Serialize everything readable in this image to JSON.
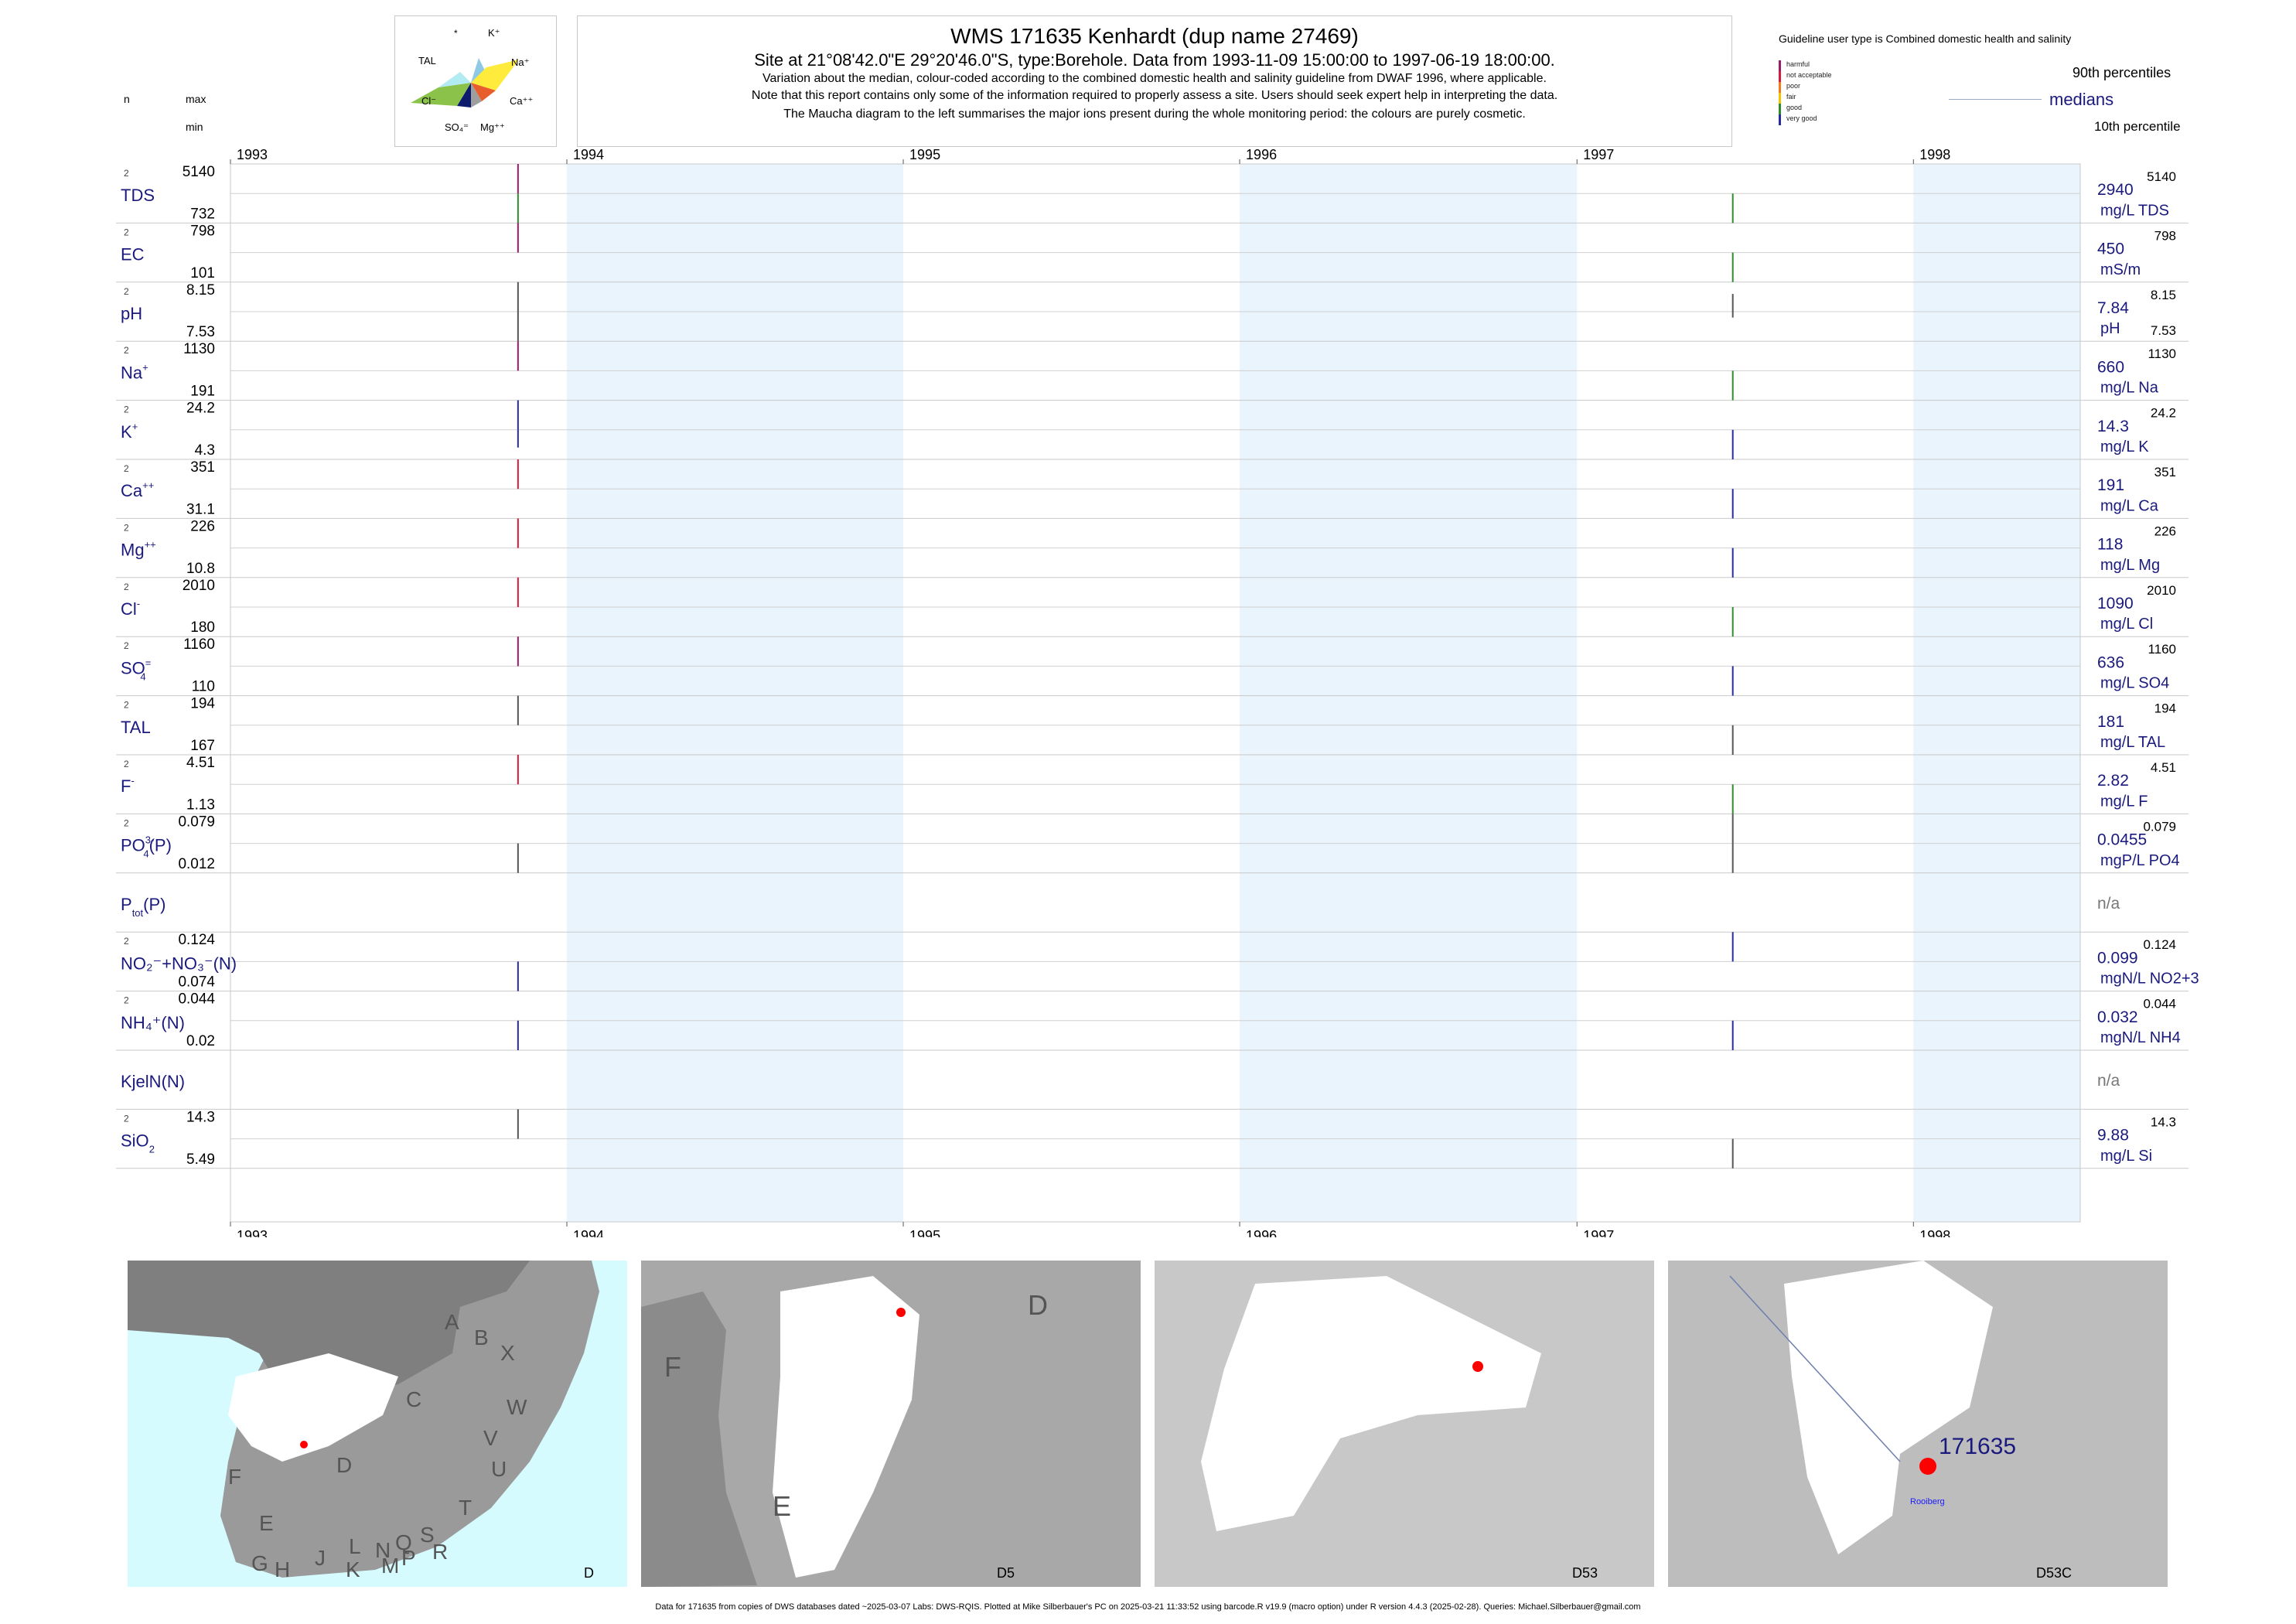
{
  "header": {
    "title": "WMS 171635  Kenhardt (dup name 27469)",
    "subtitle": "Site at 21°08'42.0\"E 29°20'46.0\"S, type:Borehole.  Data from 1993-11-09 15:00:00 to 1997-06-19 18:00:00.",
    "note1": "Variation about the median,  colour-coded according to the combined domestic health and salinity guideline from DWAF 1996, where applicable.",
    "note2": "Note that this report contains only some of the information required to properly assess a site. Users should seek expert help in interpreting the data.",
    "note3": "The Maucha diagram to the left summarises the major ions present during the whole monitoring period: the colours are purely cosmetic."
  },
  "maucha": {
    "labels": [
      "*",
      "K⁺",
      "TAL",
      "Na⁺",
      "Cl⁻",
      "Ca⁺⁺",
      "SO₄⁼",
      "Mg⁺⁺"
    ]
  },
  "left_header": {
    "n": "n",
    "max": "max",
    "min": "min"
  },
  "legend": {
    "guideline": "Guideline user type is Combined domestic health and salinity",
    "p90": "90th percentiles",
    "medians": "medians",
    "p10": "10th percentile",
    "classes": [
      {
        "label": "harmful",
        "color": "#9b1b6b"
      },
      {
        "label": "not acceptable",
        "color": "#d81b3c"
      },
      {
        "label": "poor",
        "color": "#f27c1a"
      },
      {
        "label": "fair",
        "color": "#f5c400"
      },
      {
        "label": "good",
        "color": "#2e8b2e"
      },
      {
        "label": "very good",
        "color": "#2a2aa0"
      }
    ]
  },
  "colors": {
    "shade": "#e9f4fc",
    "grid": "#c9c9c9",
    "navy": "#1a1a7e"
  },
  "chart_data": {
    "type": "line",
    "x_range": [
      "1993-01-01",
      "1998-07-01"
    ],
    "years": [
      "1993",
      "1994",
      "1995",
      "1996",
      "1997",
      "1998"
    ],
    "sample_dates": [
      "1993-11-09",
      "1997-06-19"
    ],
    "series": [
      {
        "name": "TDS",
        "sup": "",
        "sub": "",
        "n": "2",
        "max": "5140",
        "min": "732",
        "median": "2940",
        "unit": "mg/L TDS",
        "rmax": "5140",
        "rmin": "",
        "seg1": [
          "#9b1b6b",
          "#2e8b2e"
        ],
        "seg2": [
          "#2e8b2e",
          "#2e8b2e"
        ],
        "pos1": [
          0,
          1
        ],
        "pos2": [
          0.5,
          1
        ]
      },
      {
        "name": "EC",
        "sup": "",
        "sub": "",
        "n": "2",
        "max": "798",
        "min": "101",
        "median": "450",
        "unit": "mS/m",
        "rmax": "798",
        "rmin": "",
        "seg1": [
          "#9b1b6b",
          "#2e8b2e"
        ],
        "seg2": [
          "#2e8b2e",
          "#2e8b2e"
        ],
        "pos1": [
          0,
          0.5
        ],
        "pos2": [
          0.5,
          1
        ]
      },
      {
        "name": "pH",
        "sup": "",
        "sub": "",
        "n": "2",
        "max": "8.15",
        "min": "7.53",
        "median": "7.84",
        "unit": "pH",
        "rmax": "8.15",
        "rmin": "7.53",
        "seg1": [
          "#555555",
          "#555555"
        ],
        "seg2": [
          "#555555",
          "#555555"
        ],
        "pos1": [
          0,
          1
        ],
        "pos2": [
          0.2,
          0.6
        ]
      },
      {
        "name": "Na",
        "sup": "+",
        "sub": "",
        "n": "2",
        "max": "1130",
        "min": "191",
        "median": "660",
        "unit": "mg/L Na",
        "rmax": "1130",
        "rmin": "",
        "seg1": [
          "#9b1b6b",
          "#2e8b2e"
        ],
        "seg2": [
          "#2e8b2e",
          "#2e8b2e"
        ],
        "pos1": [
          0,
          0.5
        ],
        "pos2": [
          0.5,
          1
        ]
      },
      {
        "name": "K",
        "sup": "+",
        "sub": "",
        "n": "2",
        "max": "24.2",
        "min": "4.3",
        "median": "14.3",
        "unit": "mg/L K",
        "rmax": "24.2",
        "rmin": "",
        "seg1": [
          "#2a2aa0",
          "#2a2aa0"
        ],
        "seg2": [
          "#2a2aa0",
          "#2a2aa0"
        ],
        "pos1": [
          0,
          0.8
        ],
        "pos2": [
          0.5,
          1
        ]
      },
      {
        "name": "Ca",
        "sup": "++",
        "sub": "",
        "n": "2",
        "max": "351",
        "min": "31.1",
        "median": "191",
        "unit": "mg/L Ca",
        "rmax": "351",
        "rmin": "",
        "seg1": [
          "#d81b3c",
          "#2a2aa0"
        ],
        "seg2": [
          "#2a2aa0",
          "#2a2aa0"
        ],
        "pos1": [
          0,
          0.5
        ],
        "pos2": [
          0.5,
          1
        ]
      },
      {
        "name": "Mg",
        "sup": "++",
        "sub": "",
        "n": "2",
        "max": "226",
        "min": "10.8",
        "median": "118",
        "unit": "mg/L Mg",
        "rmax": "226",
        "rmin": "",
        "seg1": [
          "#d81b3c",
          "#2a2aa0"
        ],
        "seg2": [
          "#2a2aa0",
          "#2a2aa0"
        ],
        "pos1": [
          0,
          0.5
        ],
        "pos2": [
          0.5,
          1
        ]
      },
      {
        "name": "Cl",
        "sup": "-",
        "sub": "",
        "n": "2",
        "max": "2010",
        "min": "180",
        "median": "1090",
        "unit": "mg/L Cl",
        "rmax": "2010",
        "rmin": "",
        "seg1": [
          "#d81b3c",
          "#2e8b2e"
        ],
        "seg2": [
          "#2e8b2e",
          "#2e8b2e"
        ],
        "pos1": [
          0,
          0.5
        ],
        "pos2": [
          0.5,
          1
        ]
      },
      {
        "name": "SO",
        "sup": "=",
        "sub": "4",
        "n": "2",
        "max": "1160",
        "min": "110",
        "median": "636",
        "unit": "mg/L SO4",
        "rmax": "1160",
        "rmin": "",
        "seg1": [
          "#9b1b6b",
          "#2a2aa0"
        ],
        "seg2": [
          "#2a2aa0",
          "#2a2aa0"
        ],
        "pos1": [
          0,
          0.5
        ],
        "pos2": [
          0.5,
          1
        ]
      },
      {
        "name": "TAL",
        "sup": "",
        "sub": "",
        "n": "2",
        "max": "194",
        "min": "167",
        "median": "181",
        "unit": "mg/L TAL",
        "rmax": "194",
        "rmin": "",
        "seg1": [
          "#555555",
          "#555555"
        ],
        "seg2": [
          "#555555",
          "#555555"
        ],
        "pos1": [
          0,
          0.5
        ],
        "pos2": [
          0.5,
          1
        ]
      },
      {
        "name": "F",
        "sup": "-",
        "sub": "",
        "n": "2",
        "max": "4.51",
        "min": "1.13",
        "median": "2.82",
        "unit": "mg/L F",
        "rmax": "4.51",
        "rmin": "",
        "seg1": [
          "#d81b3c",
          "#2e8b2e"
        ],
        "seg2": [
          "#2e8b2e",
          "#2e8b2e"
        ],
        "pos1": [
          0,
          0.5
        ],
        "pos2": [
          0.5,
          1
        ]
      },
      {
        "name": "PO",
        "sup": "3-",
        "sub": "4",
        "tail": "(P)",
        "n": "2",
        "max": "0.079",
        "min": "0.012",
        "median": "0.0455",
        "unit": "mgP/L PO4",
        "rmax": "0.079",
        "rmin": "",
        "seg1": [
          "#555555",
          "#555555"
        ],
        "seg2": [
          "#555555",
          "#555555"
        ],
        "pos1": [
          0.5,
          1
        ],
        "pos2": [
          0,
          1
        ]
      },
      {
        "name": "P",
        "sup": "",
        "sub": "tot",
        "tail": "(P)",
        "n": "",
        "max": "",
        "min": "",
        "median": "n/a",
        "unit": "",
        "rmax": "",
        "rmin": "",
        "empty": true
      },
      {
        "name": "NO₂⁻+NO₃⁻(N)",
        "sup": "",
        "sub": "",
        "n": "2",
        "max": "0.124",
        "min": "0.074",
        "median": "0.099",
        "unit": "mgN/L NO2+3",
        "rmax": "0.124",
        "rmin": "",
        "seg1": [
          "#2a2aa0",
          "#2a2aa0"
        ],
        "seg2": [
          "#2a2aa0",
          "#2a2aa0"
        ],
        "pos1": [
          0.5,
          1
        ],
        "pos2": [
          0,
          0.5
        ]
      },
      {
        "name": "NH₄⁺(N)",
        "sup": "",
        "sub": "",
        "n": "2",
        "max": "0.044",
        "min": "0.02",
        "median": "0.032",
        "unit": "mgN/L NH4",
        "rmax": "0.044",
        "rmin": "",
        "seg1": [
          "#2a2aa0",
          "#2a2aa0"
        ],
        "seg2": [
          "#2a2aa0",
          "#2a2aa0"
        ],
        "pos1": [
          0.5,
          1
        ],
        "pos2": [
          0.5,
          1
        ]
      },
      {
        "name": "KjelN(N)",
        "sup": "",
        "sub": "",
        "n": "",
        "max": "",
        "min": "",
        "median": "n/a",
        "unit": "",
        "rmax": "",
        "rmin": "",
        "empty": true
      },
      {
        "name": "SiO",
        "sup": "",
        "sub": "2",
        "n": "2",
        "max": "14.3",
        "min": "5.49",
        "median": "9.88",
        "unit": "mg/L Si",
        "rmax": "14.3",
        "rmin": "",
        "seg1": [
          "#555555",
          "#555555"
        ],
        "seg2": [
          "#555555",
          "#555555"
        ],
        "pos1": [
          0,
          0.5
        ],
        "pos2": [
          0.5,
          1
        ]
      }
    ]
  },
  "maps": [
    {
      "caption": "D",
      "letters": [
        "A",
        "B",
        "X",
        "C",
        "W",
        "V",
        "U",
        "T",
        "D",
        "F",
        "E",
        "G",
        "H",
        "J",
        "K",
        "L",
        "M",
        "N",
        "P",
        "Q",
        "R",
        "S"
      ]
    },
    {
      "caption": "D5",
      "letters": [
        "D",
        "F",
        "E"
      ]
    },
    {
      "caption": "D53",
      "letters": []
    },
    {
      "caption": "D53C",
      "site": "171635",
      "place": "Rooiberg"
    }
  ],
  "footer": "Data for 171635 from copies of DWS databases dated ~2025-03-07 Labs: DWS-RQIS. Plotted at Mike Silberbauer's PC on 2025-03-21 11:33:52 using barcode.R v19.9 (macro option) under R version 4.4.3 (2025-02-28). Queries: Michael.Silberbauer@gmail.com"
}
